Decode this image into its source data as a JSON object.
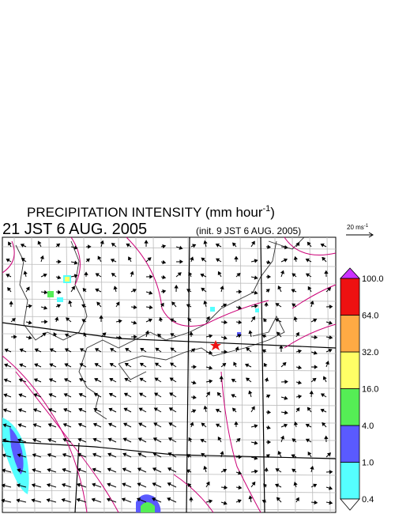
{
  "header": {
    "title": "PRECIPITATION INTENSITY (mm hour",
    "title_sup": "-1",
    "title_close": ")",
    "valid_time": "21 JST 6 AUG. 2005",
    "init_time": "(init. 9 JST 6 AUG. 2005)"
  },
  "wind_legend": {
    "label": "20 ms",
    "label_sup": "-1"
  },
  "colorbar": {
    "levels": [
      {
        "value": 0.4,
        "label": "0.4"
      },
      {
        "value": 1,
        "label": "1.0"
      },
      {
        "value": 4,
        "label": "4.0"
      },
      {
        "value": 16,
        "label": "16.0"
      },
      {
        "value": 32,
        "label": "32.0"
      },
      {
        "value": 64,
        "label": "64.0"
      },
      {
        "value": 100,
        "label": "100.0"
      }
    ],
    "colors": [
      "#55ffff",
      "#5a5aff",
      "#55ee55",
      "#ffff66",
      "#ffaa44",
      "#ee1111"
    ],
    "over_color": "#cc33ff",
    "under_color": "#ffffff"
  }
}
